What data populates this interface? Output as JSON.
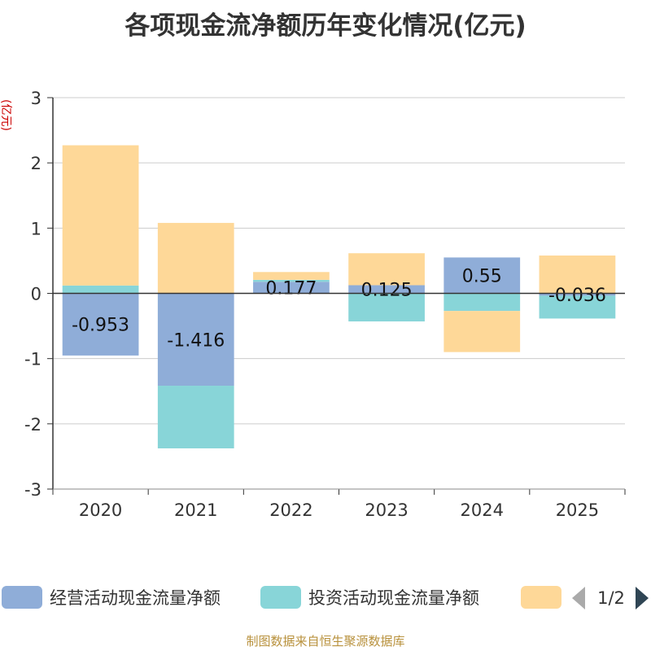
{
  "chart_data": {
    "type": "bar",
    "stacked": true,
    "title": "各项现金流净额历年变化情况(亿元)",
    "ylabel": "(亿元)",
    "ylim": [
      -3,
      3
    ],
    "yticks": [
      3,
      2,
      1,
      0,
      -1,
      -2,
      -3
    ],
    "categories": [
      "2020",
      "2021",
      "2022",
      "2023",
      "2024",
      "2025"
    ],
    "series": [
      {
        "name": "经营活动现金流量净额",
        "color": "#8fadd8",
        "values": [
          -0.953,
          -1.416,
          0.177,
          0.125,
          0.55,
          -0.036
        ],
        "labels": [
          "-0.953",
          "-1.416",
          "0.177",
          "0.125",
          "0.55",
          "-0.036"
        ]
      },
      {
        "name": "投资活动现金流量净额",
        "color": "#88d5d8",
        "values": [
          0.12,
          -0.96,
          0.03,
          -0.43,
          -0.27,
          -0.35
        ]
      },
      {
        "name": "",
        "color": "#fed898",
        "values": [
          2.15,
          1.08,
          0.12,
          0.49,
          -0.63,
          0.58
        ]
      }
    ],
    "grid": true,
    "legend_position": "bottom"
  },
  "legend": {
    "items": [
      "经营活动现金流量净额",
      "投资活动现金流量净额",
      ""
    ],
    "page": "1/2"
  },
  "source": "制图数据来自恒生聚源数据库"
}
